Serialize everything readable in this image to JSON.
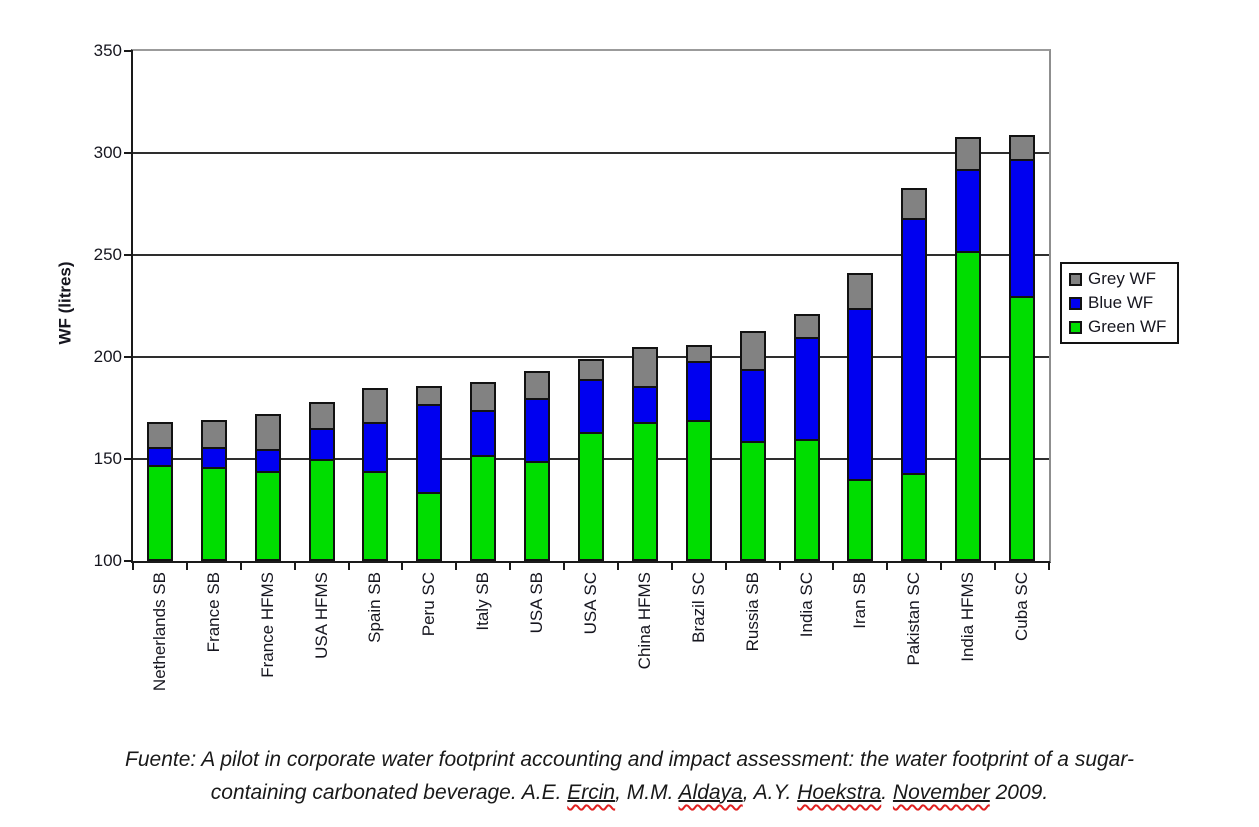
{
  "chart_data": {
    "type": "bar",
    "stacked": true,
    "title": "",
    "xlabel": "",
    "ylabel": "WF (litres)",
    "ylim": [
      100,
      350
    ],
    "yticks": [
      100,
      150,
      200,
      250,
      300,
      350
    ],
    "grid": true,
    "legend_position": "right",
    "categories": [
      "Netherlands SB",
      "France SB",
      "France HFMS",
      "USA HFMS",
      "Spain SB",
      "Peru SC",
      "Italy SB",
      "USA SB",
      "USA SC",
      "China HFMS",
      "Brazil SC",
      "Russia SB",
      "India SC",
      "Iran SB",
      "Pakistan SC",
      "India HFMS",
      "Cuba SC"
    ],
    "series": [
      {
        "name": "Green WF",
        "color": "#00dd00",
        "values": [
          147,
          146,
          144,
          150,
          144,
          134,
          152,
          149,
          163,
          168,
          169,
          159,
          160,
          140,
          143,
          252,
          230
        ]
      },
      {
        "name": "Blue WF",
        "color": "#0000f0",
        "values": [
          9,
          10,
          11,
          15,
          24,
          43,
          22,
          31,
          26,
          18,
          29,
          35,
          50,
          84,
          125,
          40,
          67
        ]
      },
      {
        "name": "Grey WF",
        "color": "#828282",
        "values": [
          12,
          13,
          17,
          13,
          17,
          9,
          14,
          13,
          10,
          19,
          8,
          19,
          11,
          17,
          15,
          16,
          12
        ]
      }
    ],
    "totals": [
      168,
      169,
      172,
      178,
      185,
      186,
      188,
      193,
      199,
      205,
      206,
      213,
      221,
      241,
      283,
      308,
      309
    ]
  },
  "legend": {
    "items": [
      {
        "label": "Grey WF",
        "color": "#828282"
      },
      {
        "label": "Blue WF",
        "color": "#0000f0"
      },
      {
        "label": "Green WF",
        "color": "#00dd00"
      }
    ]
  },
  "caption": {
    "line1": "Fuente: A pilot in corporate water footprint accounting and impact assessment: the water footprint of a sugar-",
    "line2_segments": [
      {
        "text": "containing carbonated beverage. A.E. ",
        "marked": false
      },
      {
        "text": "Ercin",
        "marked": true
      },
      {
        "text": ", M.M. ",
        "marked": false
      },
      {
        "text": "Aldaya",
        "marked": true
      },
      {
        "text": ", A.Y. ",
        "marked": false
      },
      {
        "text": "Hoekstra",
        "marked": true
      },
      {
        "text": ". ",
        "marked": false
      },
      {
        "text": "November",
        "marked": true
      },
      {
        "text": " 2009.",
        "marked": false
      }
    ]
  },
  "colors": {
    "green": "#00dd00",
    "blue": "#0000f0",
    "grey": "#828282",
    "gridline": "#2e2e2e",
    "axis": "#1a1a1a",
    "spellcheck_red": "#e02020"
  }
}
